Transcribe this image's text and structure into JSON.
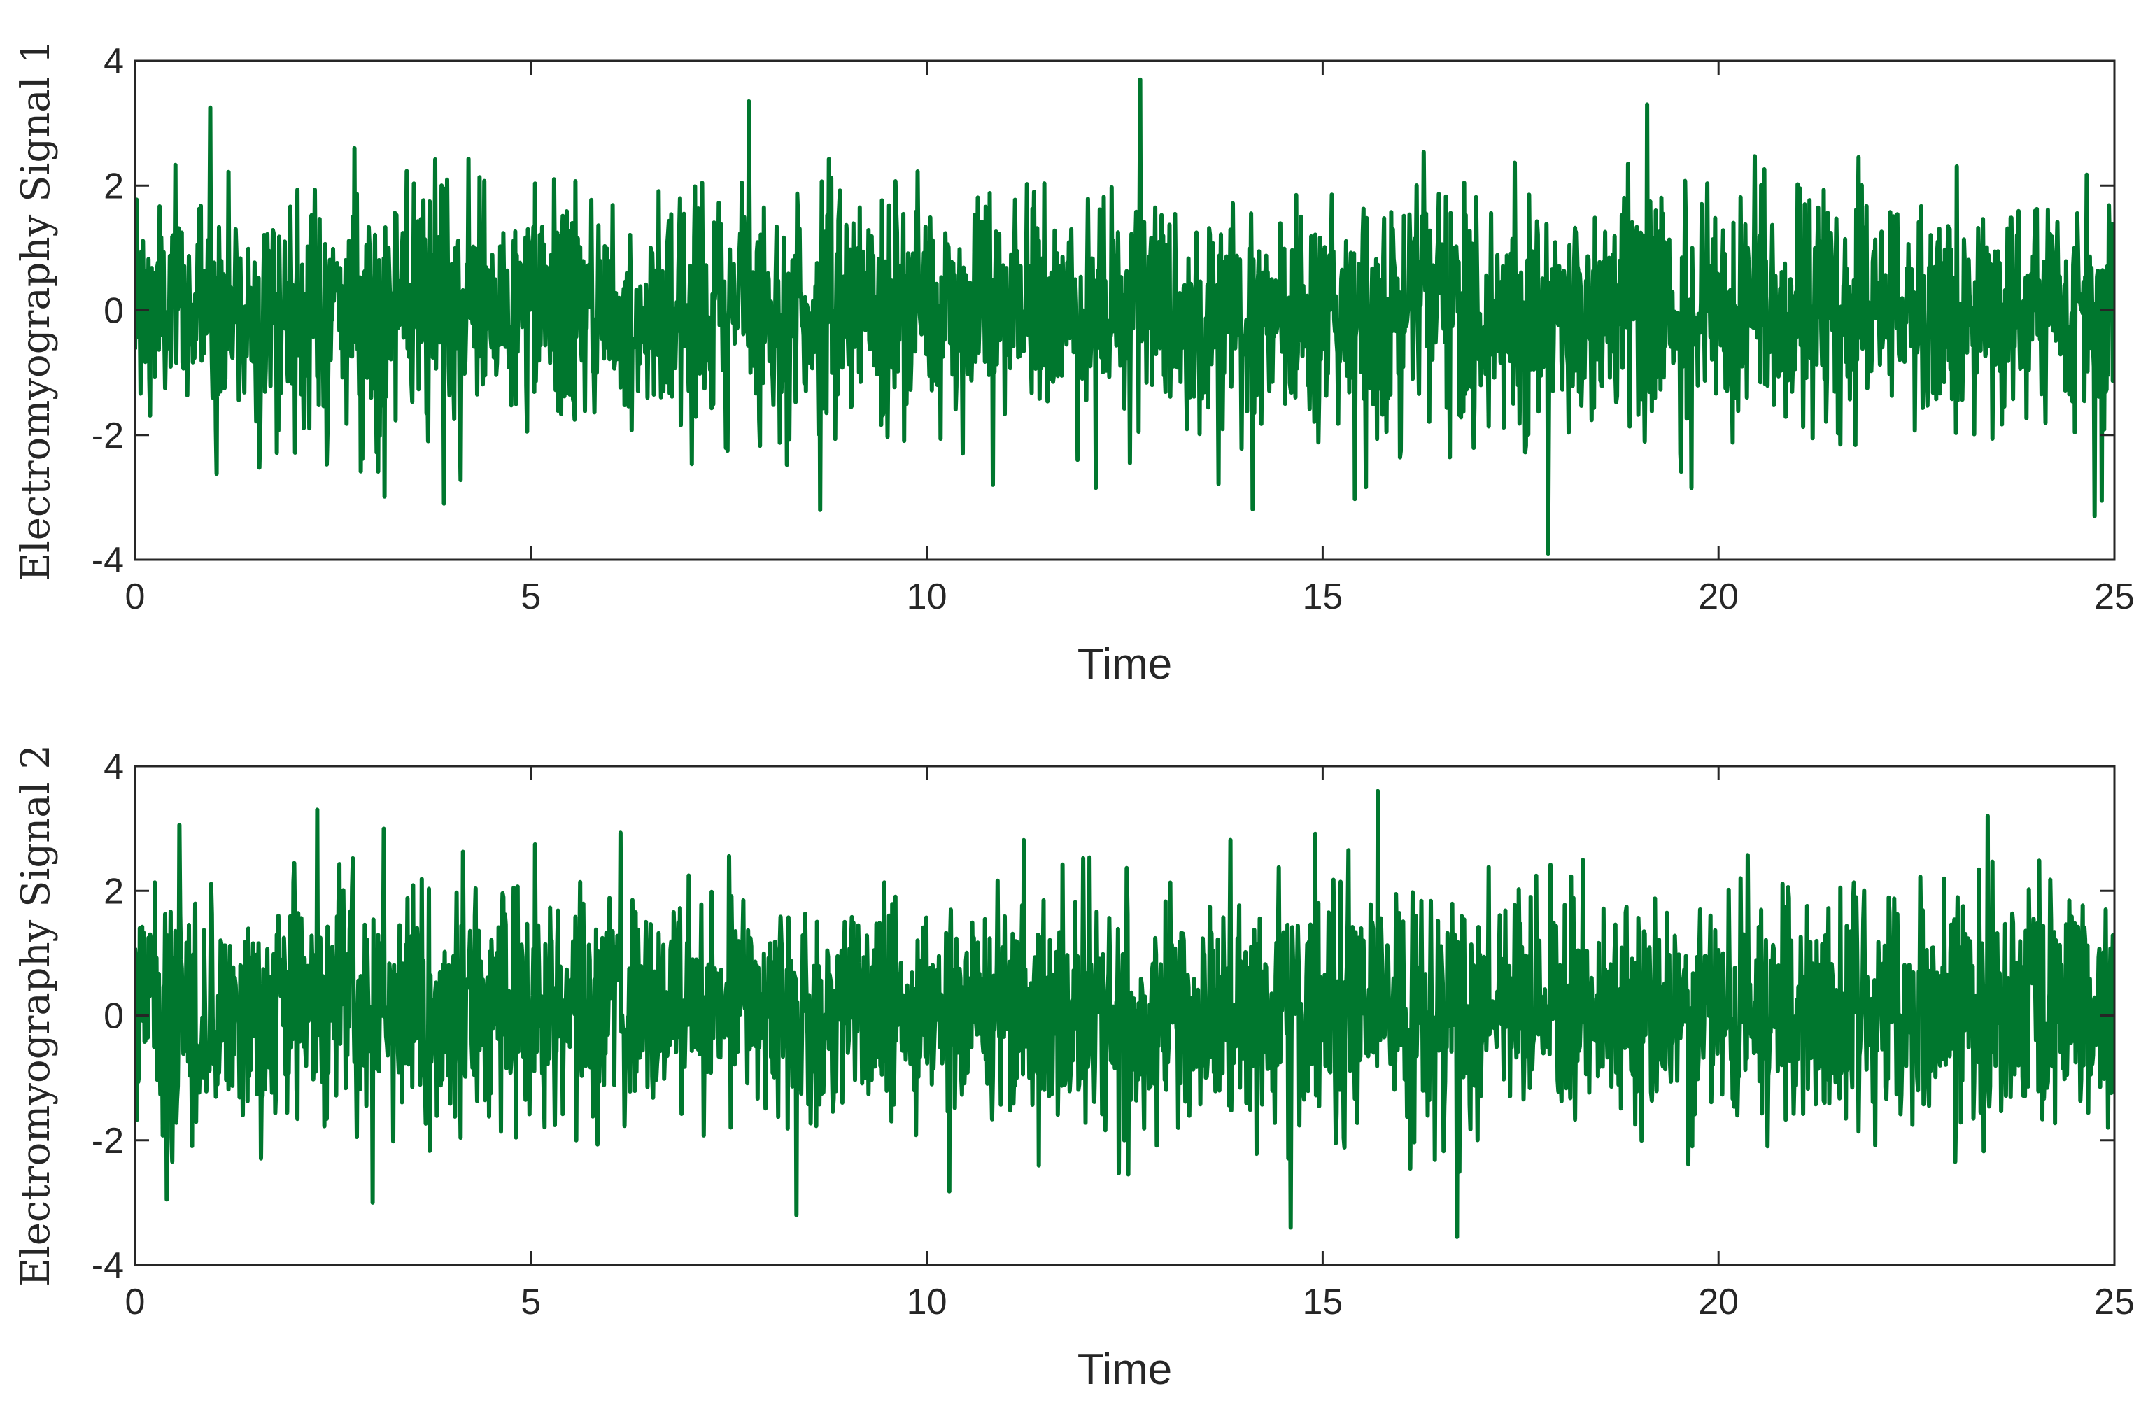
{
  "chart_data": [
    {
      "type": "line",
      "panel": "top",
      "xlabel": "Time",
      "ylabel": "Electromyography Signal 1",
      "xlim": [
        0,
        25
      ],
      "ylim": [
        -4,
        4
      ],
      "xticks": [
        "0",
        "5",
        "10",
        "15",
        "20",
        "25"
      ],
      "yticks": [
        "-4",
        "-2",
        "0",
        "2",
        "4"
      ],
      "line_color": "#00772e",
      "grid": false,
      "legend": "none",
      "series": [
        {
          "signal": "zero-mean noise",
          "n_samples": 2500,
          "x_range": [
            0,
            25
          ],
          "mean": 0.0,
          "std": 0.95,
          "min": -3.9,
          "max": 3.7,
          "peaks": [
            {
              "x": 0.95,
              "y": 3.25
            },
            {
              "x": 7.75,
              "y": 3.35
            },
            {
              "x": 12.7,
              "y": 3.7
            },
            {
              "x": 19.1,
              "y": 3.3
            },
            {
              "x": 17.85,
              "y": -3.9
            },
            {
              "x": 8.65,
              "y": -3.2
            },
            {
              "x": 3.9,
              "y": -3.1
            },
            {
              "x": 24.75,
              "y": -3.3
            }
          ]
        }
      ]
    },
    {
      "type": "line",
      "panel": "bottom",
      "xlabel": "Time",
      "ylabel": "Electromyography Signal 2",
      "xlim": [
        0,
        25
      ],
      "ylim": [
        -4,
        4
      ],
      "xticks": [
        "0",
        "5",
        "10",
        "15",
        "20",
        "25"
      ],
      "yticks": [
        "-4",
        "-2",
        "0",
        "2",
        "4"
      ],
      "line_color": "#00772e",
      "grid": false,
      "legend": "none",
      "series": [
        {
          "signal": "zero-mean noise",
          "n_samples": 2500,
          "x_range": [
            0,
            25
          ],
          "mean": 0.1,
          "std": 0.95,
          "min": -3.55,
          "max": 3.6,
          "peaks": [
            {
              "x": 2.3,
              "y": 3.3
            },
            {
              "x": 15.7,
              "y": 3.6
            },
            {
              "x": 23.4,
              "y": 3.2
            },
            {
              "x": 16.7,
              "y": -3.55
            },
            {
              "x": 14.6,
              "y": -3.4
            },
            {
              "x": 8.35,
              "y": -3.2
            },
            {
              "x": 3.0,
              "y": -3.0
            },
            {
              "x": 0.4,
              "y": -2.95
            }
          ]
        }
      ]
    }
  ]
}
